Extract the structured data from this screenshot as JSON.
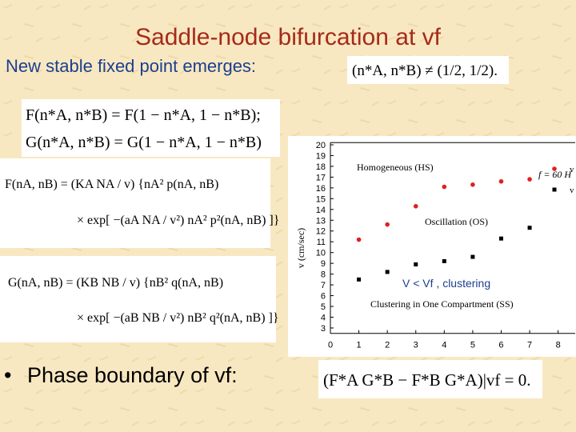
{
  "title": "Saddle-node bifurcation at vf",
  "subtitle": "New stable fixed point emerges:",
  "condition": "(n*A, n*B) ≠ (1/2, 1/2).",
  "equations": [
    [
      "F(n*A, n*B) = F(1 − n*A, 1 − n*B);",
      "G(n*A, n*B) = G(1 − n*A, 1 − n*B)"
    ],
    [
      "F(nA, nB) = (KA NA / v) {nA² p(nA, nB)",
      "× exp[ −(aA NA / v²) nA² p²(nA, nB) ]}"
    ],
    [
      "G(nA, nB) = (KB NB / v) {nB² q(nA, nB)",
      "× exp[ −(aB NB / v²) nB² q²(nA, nB) ]}"
    ]
  ],
  "bullet": "Phase boundary of vf:",
  "boundary_equation": "(F*A G*B − F*B G*A)|vf = 0.",
  "chart_data": {
    "type": "scatter",
    "ylabel": "v (cm/sec)",
    "annotations": [
      "f = 60 H",
      "Homogeneous (HS)",
      "Oscillation (OS)",
      "Clustering in One Compartment (SS)",
      "V < Vf , clustering"
    ],
    "xlim": [
      0,
      8.6
    ],
    "ylim": [
      2.5,
      20.2
    ],
    "xticks": [
      0,
      1,
      2,
      3,
      4,
      5,
      6,
      7,
      8
    ],
    "yticks": [
      3,
      4,
      5,
      6,
      7,
      8,
      9,
      10,
      11,
      12,
      13,
      14,
      15,
      16,
      17,
      18,
      19,
      20
    ],
    "series": [
      {
        "name": "v",
        "color": "#e02020",
        "marker": "circle",
        "x": [
          1,
          2,
          3,
          4,
          5,
          6,
          7
        ],
        "values": [
          11.2,
          12.6,
          14.3,
          16.1,
          16.3,
          16.6,
          16.8
        ]
      },
      {
        "name": "v",
        "color": "#000000",
        "marker": "square",
        "x": [
          1,
          2,
          3,
          4,
          5,
          6,
          7
        ],
        "values": [
          7.5,
          8.2,
          8.9,
          9.2,
          9.6,
          11.3,
          12.3
        ]
      }
    ]
  }
}
